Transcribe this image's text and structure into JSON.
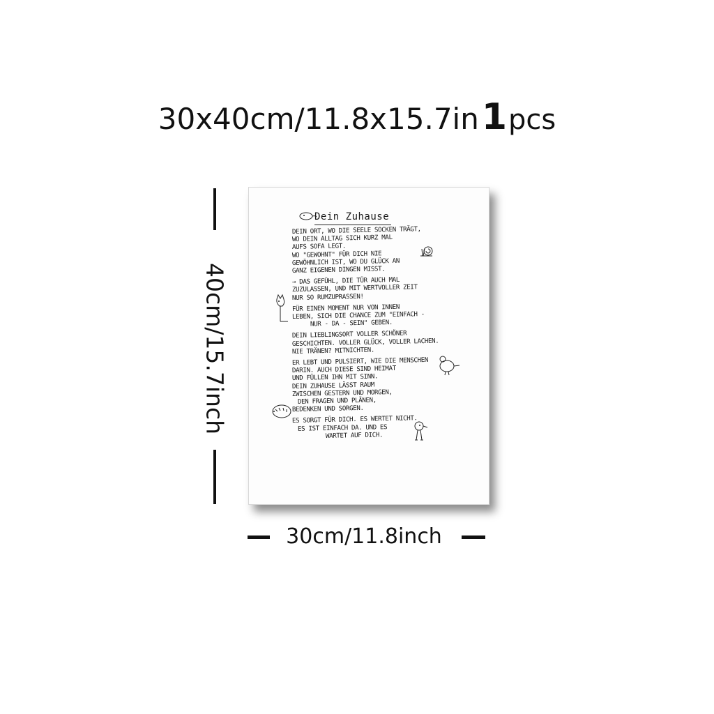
{
  "headline": {
    "size_text": "30x40cm/11.8x15.7in",
    "quantity": "1",
    "unit": "pcs"
  },
  "dimensions": {
    "height_label": "40cm/15.7inch",
    "width_label": "30cm/11.8inch"
  },
  "poster": {
    "title": "Dein Zuhause",
    "lines": [
      "Dein Ort, wo die Seele Socken trägt,",
      "wo dein Alltag sich kurz mal",
      "aufs Sofa legt.",
      "Wo \"Gewohnt\" für dich nie",
      "gewöhnlich ist, wo du Glück an",
      "ganz eigenen Dingen misst.",
      "→ Das Gefühl, die Tür auch mal",
      "zuzulassen, und mit wertvoller Zeit",
      "nur so rumzuprassen!",
      "Für einen Moment nur von innen",
      "leben, sich die Chance zum \"Einfach -",
      "nur - da - sein\" geben.",
      "Dein Lieblingsort voller schöner",
      "Geschichten. Voller Glück, voller Lachen.",
      "Nie Tränen? Mitnichten.",
      "Er lebt und pulsiert, wie die Menschen",
      "darin. Auch diese sind Heimat",
      "und füllen ihn mit Sinn.",
      "Dein Zuhause lässt Raum",
      "zwischen gestern und morgen,",
      "den Fragen und Plänen,",
      "Bedenken und Sorgen.",
      "Es sorgt für dich. Es wertet nicht.",
      "Es ist einfach da. Und es",
      "wartet auf dich."
    ]
  },
  "colors": {
    "background": "#ffffff",
    "ink": "#111111",
    "poster_paper": "#fdfdfd"
  }
}
